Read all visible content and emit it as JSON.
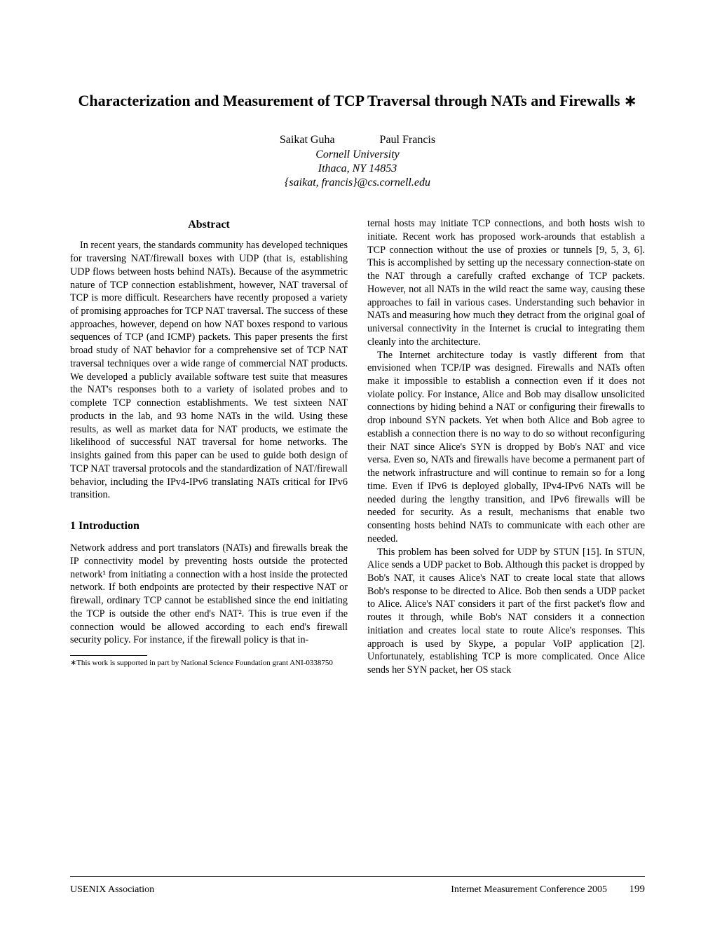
{
  "title": "Characterization and Measurement of TCP Traversal through NATs and Firewalls ∗",
  "authors_line": "Saikat Guha",
  "author2": "Paul Francis",
  "affiliation": "Cornell University",
  "location": "Ithaca, NY 14853",
  "emails": "{saikat, francis}@cs.cornell.edu",
  "abstract_heading": "Abstract",
  "abstract_body": "In recent years, the standards community has developed techniques for traversing NAT/firewall boxes with UDP (that is, establishing UDP flows between hosts behind NATs). Because of the asymmetric nature of TCP connection establishment, however, NAT traversal of TCP is more difficult. Researchers have recently proposed a variety of promising approaches for TCP NAT traversal. The success of these approaches, however, depend on how NAT boxes respond to various sequences of TCP (and ICMP) packets. This paper presents the first broad study of NAT behavior for a comprehensive set of TCP NAT traversal techniques over a wide range of commercial NAT products. We developed a publicly available software test suite that measures the NAT's responses both to a variety of isolated probes and to complete TCP connection establishments. We test sixteen NAT products in the lab, and 93 home NATs in the wild. Using these results, as well as market data for NAT products, we estimate the likelihood of successful NAT traversal for home networks. The insights gained from this paper can be used to guide both design of TCP NAT traversal protocols and the standardization of NAT/firewall behavior, including the IPv4-IPv6 translating NATs critical for IPv6 transition.",
  "section1_heading": "1   Introduction",
  "col1_para1": "Network address and port translators (NATs) and firewalls break the IP connectivity model by preventing hosts outside the protected network¹ from initiating a connection with a host inside the protected network. If both endpoints are protected by their respective NAT or firewall, ordinary TCP cannot be established since the end initiating the TCP is outside the other end's NAT². This is true even if the connection would be allowed according to each end's firewall security policy. For instance, if the firewall policy is that in-",
  "footnote": "∗This work is supported in part by National Science Foundation grant ANI-0338750",
  "col2_para1": "ternal hosts may initiate TCP connections, and both hosts wish to initiate. Recent work has proposed work-arounds that establish a TCP connection without the use of proxies or tunnels [9, 5, 3, 6]. This is accomplished by setting up the necessary connection-state on the NAT through a carefully crafted exchange of TCP packets. However, not all NATs in the wild react the same way, causing these approaches to fail in various cases. Understanding such behavior in NATs and measuring how much they detract from the original goal of universal connectivity in the Internet is crucial to integrating them cleanly into the architecture.",
  "col2_para2": "The Internet architecture today is vastly different from that envisioned when TCP/IP was designed. Firewalls and NATs often make it impossible to establish a connection even if it does not violate policy. For instance, Alice and Bob may disallow unsolicited connections by hiding behind a NAT or configuring their firewalls to drop inbound SYN packets. Yet when both Alice and Bob agree to establish a connection there is no way to do so without reconfiguring their NAT since Alice's SYN is dropped by Bob's NAT and vice versa. Even so, NATs and firewalls have become a permanent part of the network infrastructure and will continue to remain so for a long time. Even if IPv6 is deployed globally, IPv4-IPv6 NATs will be needed during the lengthy transition, and IPv6 firewalls will be needed for security. As a result, mechanisms that enable two consenting hosts behind NATs to communicate with each other are needed.",
  "col2_para3": "This problem has been solved for UDP by STUN [15]. In STUN, Alice sends a UDP packet to Bob. Although this packet is dropped by Bob's NAT, it causes Alice's NAT to create local state that allows Bob's response to be directed to Alice. Bob then sends a UDP packet to Alice. Alice's NAT considers it part of the first packet's flow and routes it through, while Bob's NAT considers it a connection initiation and creates local state to route Alice's responses. This approach is used by Skype, a popular VoIP application [2]. Unfortunately, establishing TCP is more complicated. Once Alice sends her SYN packet, her OS stack",
  "footer_left": "USENIX Association",
  "footer_right": "Internet Measurement Conference 2005",
  "page_number": "199"
}
